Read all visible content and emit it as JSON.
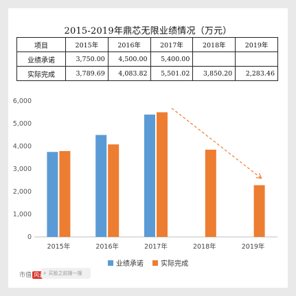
{
  "title": "2015-2019年鼎芯无限业绩情况（万元）",
  "table": {
    "header": [
      "项目",
      "2015年",
      "2016年",
      "2017年",
      "2018年",
      "2019年"
    ],
    "rows": [
      {
        "label": "业绩承诺",
        "cells": [
          "3,750.00",
          "4,500.00",
          "5,400.00",
          "",
          ""
        ]
      },
      {
        "label": "实际完成",
        "cells": [
          "3,789.69",
          "4,083.82",
          "5,501.02",
          "3,850.20",
          "2,283.46"
        ]
      }
    ]
  },
  "chart_data": {
    "type": "bar",
    "categories": [
      "2015年",
      "2016年",
      "2017年",
      "2018年",
      "2019年"
    ],
    "series": [
      {
        "name": "业绩承诺",
        "color": "#5b9bd5",
        "values": [
          3750.0,
          4500.0,
          5400.0,
          null,
          null
        ]
      },
      {
        "name": "实际完成",
        "color": "#ed7d31",
        "values": [
          3789.69,
          4083.82,
          5501.02,
          3850.2,
          2283.46
        ]
      }
    ],
    "ylim": [
      0,
      6000
    ],
    "yticks": [
      "0",
      "1,000",
      "2,000",
      "3,000",
      "4,000",
      "5,000",
      "6,000"
    ],
    "grid": false,
    "legend": "bottom",
    "annotation": {
      "type": "dashed-arrow",
      "from_category": "2017年",
      "to_category": "2019年",
      "color": "#ed7d31"
    }
  },
  "footer": {
    "brand": "市值",
    "brand_mark": "风云",
    "search_icon": "search-icon",
    "search_placeholder": "买股之前搜一搜"
  }
}
